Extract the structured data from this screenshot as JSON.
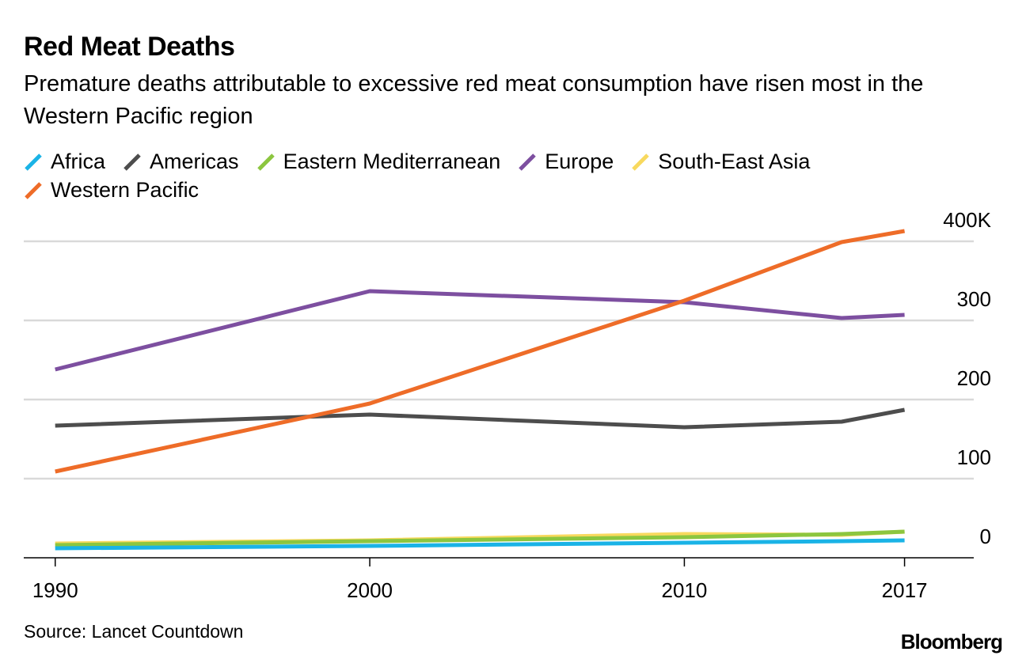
{
  "header": {
    "title": "Red Meat Deaths",
    "subtitle": "Premature deaths attributable to excessive red meat consumption have risen most in the Western Pacific region"
  },
  "footer": {
    "source": "Source: Lancet Countdown",
    "brand": "Bloomberg"
  },
  "chart_data": {
    "type": "line",
    "title": "Red Meat Deaths",
    "subtitle": "Premature deaths attributable to excessive red meat consumption have risen most in the Western Pacific region",
    "xlabel": "",
    "ylabel": "",
    "x": [
      1990,
      2000,
      2010,
      2015,
      2017
    ],
    "x_ticks": [
      "1990",
      "2000",
      "2010",
      "2017"
    ],
    "x_tick_values": [
      1990,
      2000,
      2010,
      2017
    ],
    "xlim": [
      1989,
      2019.2
    ],
    "y_ticks": [
      "400K",
      "300",
      "200",
      "100",
      "0"
    ],
    "y_tick_values": [
      400,
      300,
      200,
      100,
      0
    ],
    "ylim": [
      0,
      400
    ],
    "y_axis_side": "right",
    "grid": true,
    "legend_position": "top",
    "series": [
      {
        "name": "Africa",
        "color": "#1ab3e6",
        "values": [
          12,
          15,
          19,
          21,
          22
        ]
      },
      {
        "name": "Americas",
        "color": "#4d4d4d",
        "values": [
          167,
          181,
          165,
          172,
          187
        ]
      },
      {
        "name": "Eastern Mediterranean",
        "color": "#8cc63f",
        "values": [
          16,
          21,
          26,
          30,
          33
        ]
      },
      {
        "name": "Europe",
        "color": "#7d4fa0",
        "values": [
          238,
          337,
          323,
          303,
          307
        ]
      },
      {
        "name": "South-East Asia",
        "color": "#f8d95e",
        "values": [
          18,
          22,
          30,
          29,
          33
        ]
      },
      {
        "name": "Western Pacific",
        "color": "#ee6c28",
        "values": [
          109,
          195,
          325,
          399,
          413
        ]
      }
    ]
  }
}
